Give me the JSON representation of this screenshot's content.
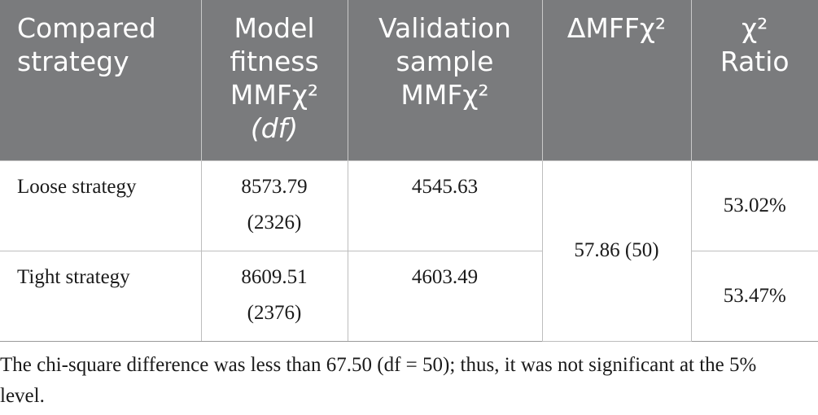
{
  "header": {
    "col1_line1": "Compared",
    "col1_line2": "strategy",
    "col2_line1": "Model",
    "col2_line2": "fitness",
    "col2_line3": "MMFχ²",
    "col2_line4": "(df)",
    "col3_line1": "Validation",
    "col3_line2": "sample",
    "col3_line3": "MMFχ²",
    "col4": "ΔMFFχ²",
    "col5_line1": "χ²",
    "col5_line2": "Ratio"
  },
  "rows": [
    {
      "strategy": "Loose strategy",
      "fitness": "8573.79",
      "df": "(2326)",
      "validation": "4545.63",
      "ratio": "53.02%"
    },
    {
      "strategy": "Tight strategy",
      "fitness": "8609.51",
      "df": "(2376)",
      "validation": "4603.49",
      "ratio": "53.47%"
    }
  ],
  "delta": "57.86 (50)",
  "footnote": "The chi-square difference was less than 67.50 (df = 50); thus, it was not significant at the 5% level."
}
